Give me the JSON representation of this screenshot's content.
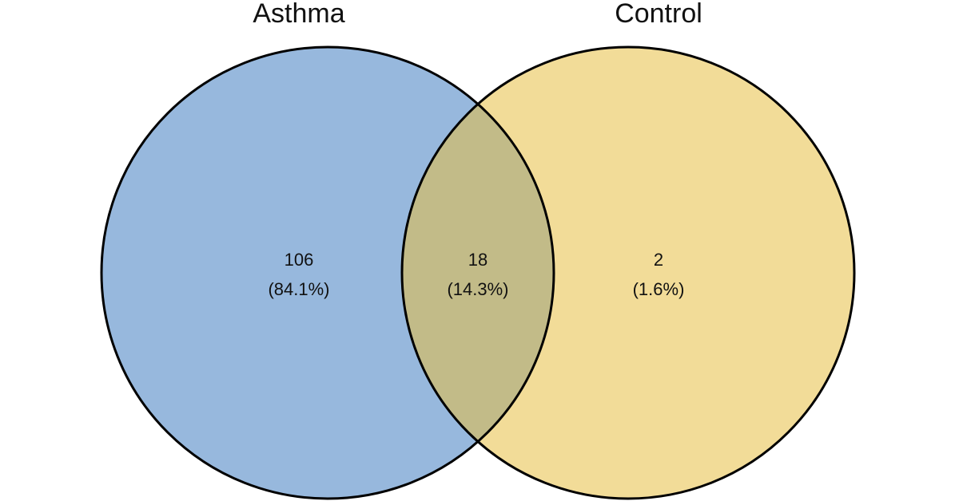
{
  "sets": [
    {
      "name": "Asthma",
      "color": "#97b8dd"
    },
    {
      "name": "Control",
      "color": "#f2dc98"
    }
  ],
  "overlap_color": "#c2bb88",
  "outline_color": "#000000",
  "regions": {
    "asthma_only": {
      "count": "106",
      "percent": "(84.1%)"
    },
    "intersection": {
      "count": "18",
      "percent": "(14.3%)"
    },
    "control_only": {
      "count": "2",
      "percent": "(1.6%)"
    }
  }
}
